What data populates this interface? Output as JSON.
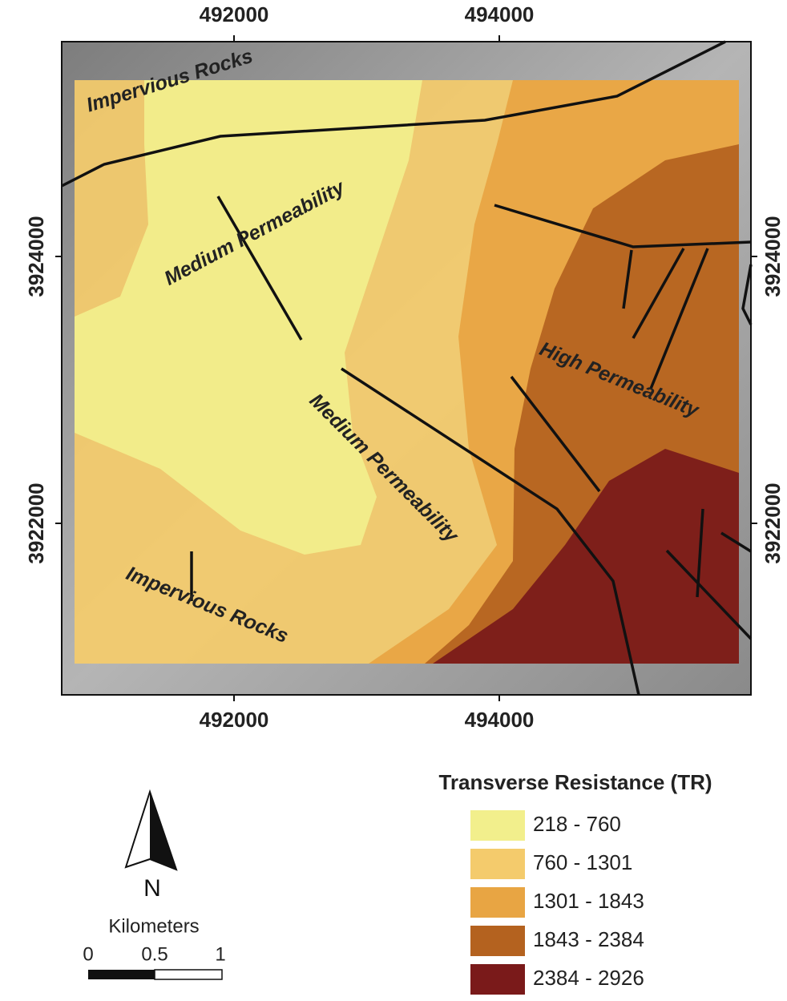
{
  "map": {
    "x_ticks": [
      "492000",
      "494000"
    ],
    "y_ticks": [
      "3924000",
      "3922000"
    ],
    "zone_labels": [
      "Impervious Rocks",
      "Medium Permeability",
      "Medium Permeability",
      "High Permeability",
      "Impervious Rocks"
    ]
  },
  "legend": {
    "title": "Transverse Resistance (TR)",
    "items": [
      {
        "label": "218 - 760",
        "color": "#f2ef8c"
      },
      {
        "label": "760 - 1301",
        "color": "#f4cb6c"
      },
      {
        "label": "1301 - 1843",
        "color": "#e8a543"
      },
      {
        "label": "1843 - 2384",
        "color": "#b4621f"
      },
      {
        "label": "2384 - 2926",
        "color": "#7a1a1a"
      }
    ]
  },
  "north_arrow": {
    "label": "N"
  },
  "scale_bar": {
    "unit": "Kilometers",
    "ticks": [
      "0",
      "0.5",
      "1"
    ]
  }
}
